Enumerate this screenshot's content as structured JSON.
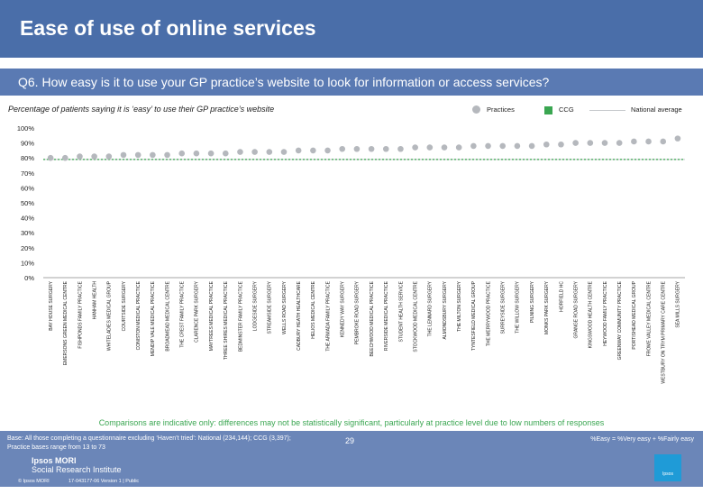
{
  "header": {
    "title": "Ease of use of online services"
  },
  "question": "Q6. How easy is it to use your GP practice’s website to look for information or access services?",
  "subtitle": "Percentage of patients saying it is ‘easy’ to use their GP practice’s website",
  "legend": {
    "practices": "Practices",
    "ccg": "CCG",
    "national": "National average"
  },
  "colors": {
    "practice_marker": "#b5b8bd",
    "ccg": "#3aa651",
    "header": "#4a6ea9"
  },
  "chart_data": {
    "type": "scatter",
    "title": "",
    "ylim": [
      0,
      100
    ],
    "yticks": [
      "0%",
      "10%",
      "20%",
      "30%",
      "40%",
      "50%",
      "60%",
      "70%",
      "80%",
      "90%",
      "100%"
    ],
    "categories": [
      "BAY HOUSE SURGERY",
      "EMERSONS GREEN MEDICAL CENTRE",
      "FISHPONDS FAMILY PRACTICE",
      "HANHAM HEALTH",
      "WHITELADIES MEDICAL GROUP",
      "COURTSIDE SURGERY",
      "CONISTON MEDICAL PRACTICE",
      "MENDIP VALE MEDICAL PRACTICE",
      "BROADMEAD MEDICAL CENTRE",
      "THE CREST FAMILY PRACTICE",
      "CLARENCE PARK SURGERY",
      "MAYTREES MEDICAL PRACTICE",
      "THREE SHIRES MEDICAL PRACTICE",
      "BEDMINSTER FAMILY PRACTICE",
      "LODGESIDE SURGERY",
      "STREAMSIDE SURGERY",
      "WELLS ROAD SURGERY",
      "CADBURY HEATH HEALTHCARE",
      "HELIOS MEDICAL CENTRE",
      "THE ARMADA FAMILY PRACTICE",
      "KENNEDY WAY SURGERY",
      "PEMBROKE ROAD SURGERY",
      "BEECHWOOD MEDICAL PRACTICE",
      "RIVERSIDE MEDICAL PRACTICE",
      "STUDENT HEALTH SERVICE",
      "STOCKWOOD MEDICAL CENTRE",
      "THE LENNARD SURGERY",
      "ALMONDSBURY SURGERY",
      "THE MILTON SURGERY",
      "TYNTESFIELD MEDICAL GROUP",
      "THE MERRYWOOD PRACTICE",
      "SURREYSIDE SURGERY",
      "THE WILLOW SURGERY",
      "PILNING SURGERY",
      "MONKS PARK SURGERY",
      "HORFIELD HC",
      "GRANGE ROAD SURGERY",
      "KINGSWOOD HEALTH CENTRE",
      "HEYWOOD FAMILY PRACTICE",
      "GREENWAY COMMUNITY PRACTICE",
      "PORTISHEAD MEDICAL GROUP",
      "FROME VALLEY MEDICAL CENTRE",
      "WESTBURY ON TRYM PRIMARY CARE CENTRE",
      "SEA MILLS SURGERY"
    ],
    "series": [
      {
        "name": "Practices",
        "values": [
          80,
          80,
          81,
          81,
          81,
          82,
          82,
          82,
          82,
          83,
          83,
          83,
          83,
          84,
          84,
          84,
          84,
          85,
          85,
          85,
          86,
          86,
          86,
          86,
          86,
          87,
          87,
          87,
          87,
          88,
          88,
          88,
          88,
          88,
          89,
          89,
          90,
          90,
          90,
          90,
          91,
          91,
          91,
          93
        ]
      }
    ],
    "ccg_value": 79,
    "national_value": 79
  },
  "note": "Comparisons are indicative only: differences may not be statistically significant, particularly at practice level due to low numbers of responses",
  "footer": {
    "base_line1": "Base: All those completing a questionnaire excluding ‘Haven’t tried’: National (234,144); CCG (3,397);",
    "base_line2": "Practice bases range from 13 to 73",
    "key": "%Easy = %Very easy + %Fairly easy",
    "page": "29",
    "logo_line1": "Ipsos MORI",
    "logo_line2": "Social Research Institute",
    "copyright": "© Ipsos MORI",
    "ref": "17-043177-06 Version 1 | Public"
  }
}
